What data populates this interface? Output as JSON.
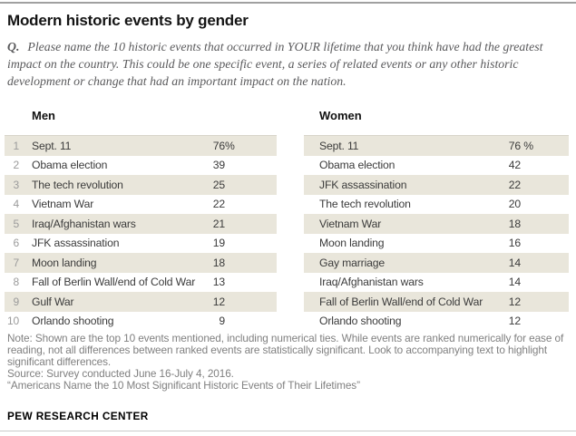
{
  "header": {
    "title": "Modern historic events by gender",
    "question_prefix": "Q.",
    "question": "Please name the 10 historic events that occurred in YOUR lifetime that you think have had the greatest impact on the country. This could be one specific event, a series of related events or any other historic development or change that had an important impact on the nation."
  },
  "colors": {
    "stripe": "#e9e6db",
    "top_rule": "#a0a0a0",
    "bottom_rule": "#c9c9c9",
    "rank_gray": "#9b9b9b",
    "body_text": "#3b3b3b",
    "note_gray": "#808080"
  },
  "tables": {
    "men": {
      "label": "Men",
      "rows": [
        {
          "rank": "1",
          "event": "Sept. 11",
          "value": "76",
          "suffix": "%"
        },
        {
          "rank": "2",
          "event": "Obama election",
          "value": "39",
          "suffix": ""
        },
        {
          "rank": "3",
          "event": "The tech revolution",
          "value": "25",
          "suffix": ""
        },
        {
          "rank": "4",
          "event": "Vietnam War",
          "value": "22",
          "suffix": ""
        },
        {
          "rank": "5",
          "event": "Iraq/Afghanistan wars",
          "value": "21",
          "suffix": ""
        },
        {
          "rank": "6",
          "event": "JFK assassination",
          "value": "19",
          "suffix": ""
        },
        {
          "rank": "7",
          "event": "Moon landing",
          "value": "18",
          "suffix": ""
        },
        {
          "rank": "8",
          "event": "Fall of Berlin Wall/end of Cold War",
          "value": "13",
          "suffix": ""
        },
        {
          "rank": "9",
          "event": "Gulf War",
          "value": "12",
          "suffix": ""
        },
        {
          "rank": "10",
          "event": "Orlando shooting",
          "value": "9",
          "suffix": ""
        }
      ]
    },
    "women": {
      "label": "Women",
      "rows": [
        {
          "event": "Sept. 11",
          "value": "76",
          "suffix": " %"
        },
        {
          "event": "Obama election",
          "value": "42",
          "suffix": ""
        },
        {
          "event": "JFK assassination",
          "value": "22",
          "suffix": ""
        },
        {
          "event": "The tech revolution",
          "value": "20",
          "suffix": ""
        },
        {
          "event": "Vietnam War",
          "value": "18",
          "suffix": ""
        },
        {
          "event": "Moon landing",
          "value": "16",
          "suffix": ""
        },
        {
          "event": "Gay marriage",
          "value": "14",
          "suffix": ""
        },
        {
          "event": "Iraq/Afghanistan wars",
          "value": "14",
          "suffix": ""
        },
        {
          "event": "Fall of Berlin Wall/end of Cold War",
          "value": "12",
          "suffix": ""
        },
        {
          "event": "Orlando shooting",
          "value": "12",
          "suffix": ""
        }
      ]
    }
  },
  "chart_data": {
    "type": "table",
    "title": "Modern historic events by gender",
    "unit": "%",
    "series": [
      {
        "name": "Men",
        "categories": [
          "Sept. 11",
          "Obama election",
          "The tech revolution",
          "Vietnam War",
          "Iraq/Afghanistan wars",
          "JFK assassination",
          "Moon landing",
          "Fall of Berlin Wall/end of Cold War",
          "Gulf War",
          "Orlando shooting"
        ],
        "values": [
          76,
          39,
          25,
          22,
          21,
          19,
          18,
          13,
          12,
          9
        ]
      },
      {
        "name": "Women",
        "categories": [
          "Sept. 11",
          "Obama election",
          "JFK assassination",
          "The tech revolution",
          "Vietnam War",
          "Moon landing",
          "Gay marriage",
          "Iraq/Afghanistan wars",
          "Fall of Berlin Wall/end of Cold War",
          "Orlando shooting"
        ],
        "values": [
          76,
          42,
          22,
          20,
          18,
          16,
          14,
          14,
          12,
          12
        ]
      }
    ]
  },
  "footer": {
    "note": "Note: Shown are the top 10 events mentioned, including numerical ties. While events are ranked numerically for ease of reading, not all differences between ranked events are statistically significant. Look to accompanying text to highlight significant differences.",
    "source": "Source: Survey conducted June 16-July 4, 2016.",
    "citation": "“Americans Name the 10 Most Significant Historic Events of Their Lifetimes”",
    "brand": "PEW RESEARCH CENTER"
  }
}
